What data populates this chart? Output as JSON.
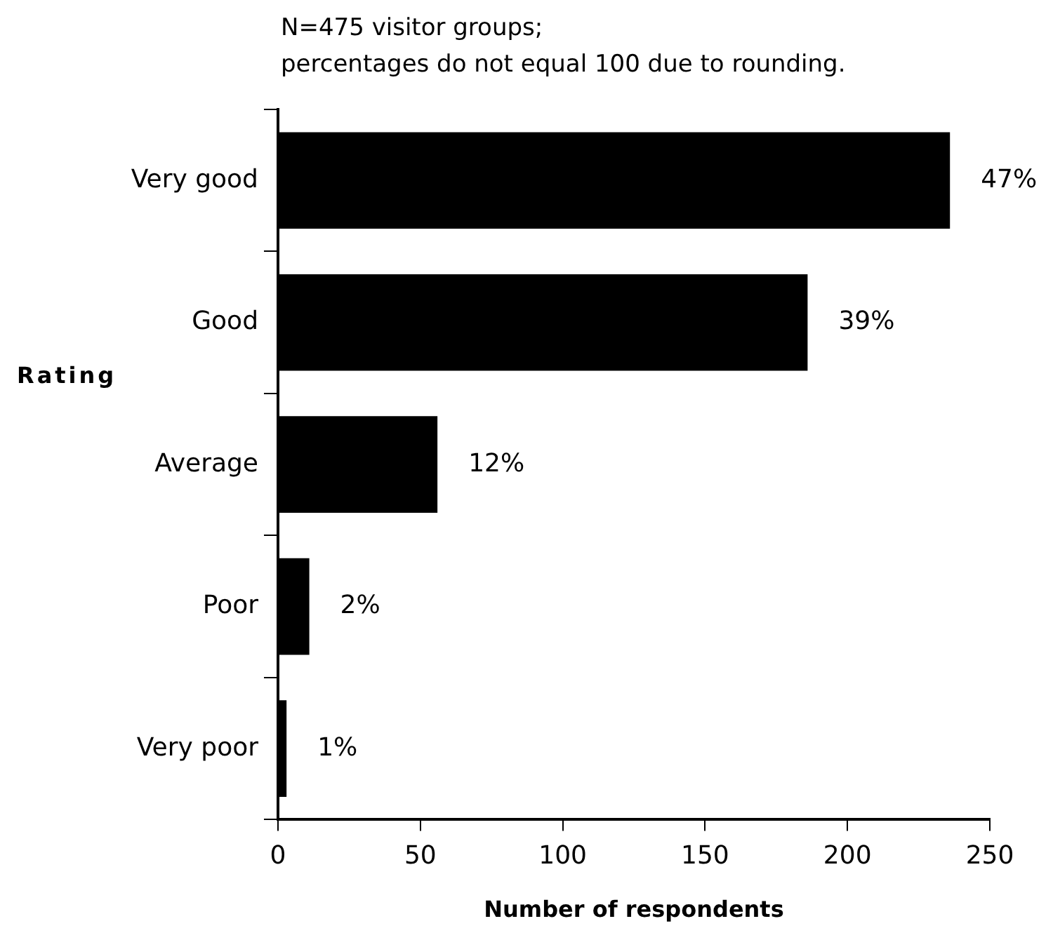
{
  "chart_data": {
    "type": "bar",
    "orientation": "horizontal",
    "title": "N=475 visitor groups;",
    "subtitle": "percentages do not equal 100 due to rounding.",
    "ylabel": "Rating",
    "xlabel": "Number of respondents",
    "categories": [
      "Very good",
      "Good",
      "Average",
      "Poor",
      "Very poor"
    ],
    "values": [
      236,
      186,
      56,
      11,
      3
    ],
    "annotations": [
      {
        "text": "47%",
        "x": 236,
        "y": "Very good"
      },
      {
        "text": "39%",
        "x": 186,
        "y": "Good"
      },
      {
        "text": "12%",
        "x": 56,
        "y": "Average"
      },
      {
        "text": "2%",
        "x": 11,
        "y": "Poor"
      },
      {
        "text": "1%",
        "x": 3,
        "y": "Very poor"
      }
    ],
    "color": "#000000",
    "xlim": [
      0,
      250
    ],
    "xticks": [
      0,
      50,
      100,
      150,
      200,
      250
    ],
    "legend": false
  }
}
